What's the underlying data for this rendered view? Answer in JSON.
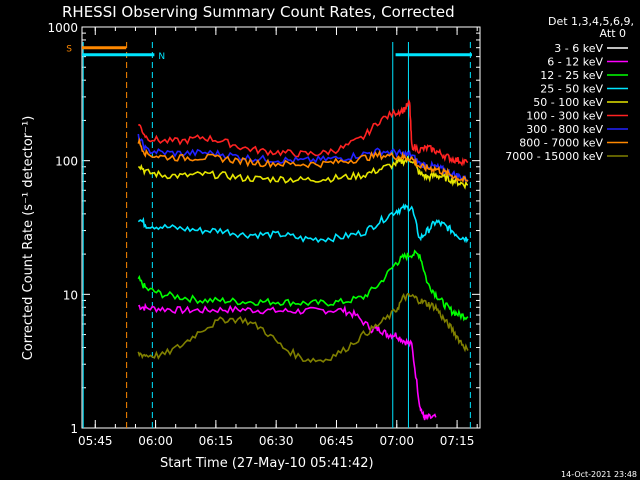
{
  "chart_data": {
    "type": "line",
    "title": "RHESSI Observing Summary Count Rates, Corrected",
    "xlabel": "Start Time (27-May-10 05:41:42)",
    "ylabel": "Corrected Count Rate (s⁻¹ detector⁻¹)",
    "footer": "14-Oct-2021 23:48",
    "legend_header": [
      "Det 1,3,4,5,6,9,",
      "Att 0"
    ],
    "legend_placement": "right",
    "x_axis": {
      "unit": "minutes after 05:41:42",
      "range": [
        0,
        99
      ],
      "ticks": [
        {
          "label": "05:45",
          "value": 3.3
        },
        {
          "label": "06:00",
          "value": 18.3
        },
        {
          "label": "06:15",
          "value": 33.3
        },
        {
          "label": "06:30",
          "value": 48.3
        },
        {
          "label": "06:45",
          "value": 63.3
        },
        {
          "label": "07:00",
          "value": 78.3
        },
        {
          "label": "07:15",
          "value": 93.3
        }
      ]
    },
    "y_axis": {
      "scale": "log",
      "range": [
        1,
        1000
      ],
      "ticks": [
        {
          "label": "1",
          "value": 1
        },
        {
          "label": "10",
          "value": 10
        },
        {
          "label": "100",
          "value": 100
        },
        {
          "label": "1000",
          "value": 1000
        }
      ]
    },
    "flags": [
      {
        "label": "S",
        "color": "#ff8800",
        "y": 700,
        "x_start": 0,
        "x_end": 11
      },
      {
        "label": "N",
        "color": "#00e5ff",
        "y": 620,
        "x_start": 0,
        "x_end": 18
      },
      {
        "label": "",
        "color": "#00e5ff",
        "y": 620,
        "x_start": 78,
        "x_end": 97
      }
    ],
    "vlines": [
      {
        "x": 0.3,
        "color": "#00e5ff",
        "style": "solid"
      },
      {
        "x": 11.1,
        "color": "#ff8800",
        "style": "dashed"
      },
      {
        "x": 17.5,
        "color": "#00e5ff",
        "style": "dashed"
      },
      {
        "x": 77.3,
        "color": "#00e5ff",
        "style": "solid"
      },
      {
        "x": 81.2,
        "color": "#00e5ff",
        "style": "solid"
      },
      {
        "x": 96.6,
        "color": "#00e5ff",
        "style": "dashed"
      }
    ],
    "series": [
      {
        "name": "3 - 6 keV",
        "color": "#000000",
        "x": [],
        "y": []
      },
      {
        "name": "6 - 12 keV",
        "color": "#ff00ff",
        "x": [
          14,
          16,
          20,
          25,
          30,
          35,
          40,
          45,
          50,
          55,
          60,
          65,
          68,
          72,
          74,
          76,
          78,
          80,
          82,
          84,
          85,
          86,
          88
        ],
        "y": [
          8.2,
          7.9,
          7.8,
          7.6,
          7.6,
          7.7,
          7.7,
          7.6,
          7.5,
          7.5,
          7.6,
          7.6,
          7.0,
          5.5,
          5.5,
          5.0,
          5.0,
          4.5,
          4.2,
          1.5,
          1.2,
          1.2,
          1.2
        ]
      },
      {
        "name": "12 - 25 keV",
        "color": "#00ff00",
        "x": [
          14,
          16,
          20,
          25,
          30,
          35,
          40,
          45,
          50,
          55,
          60,
          65,
          70,
          74,
          78,
          80,
          82,
          84,
          86,
          88,
          90,
          92,
          94,
          96
        ],
        "y": [
          13,
          11,
          10,
          9.5,
          9,
          9,
          8.8,
          8.8,
          8.8,
          8.6,
          8.6,
          8.8,
          9.5,
          12,
          17,
          19,
          20,
          20,
          12,
          10,
          8.5,
          7.5,
          7,
          6.8
        ]
      },
      {
        "name": "25 - 50 keV",
        "color": "#00e5ff",
        "x": [
          14,
          16,
          20,
          25,
          30,
          35,
          40,
          45,
          50,
          55,
          60,
          65,
          70,
          74,
          78,
          80,
          82,
          84,
          86,
          88,
          90,
          92,
          94,
          96
        ],
        "y": [
          37,
          33,
          32,
          31,
          30,
          30,
          28,
          28,
          28,
          26,
          26,
          27,
          29,
          35,
          42,
          44,
          45,
          26,
          30,
          35,
          33,
          30,
          27,
          26
        ]
      },
      {
        "name": "50 - 100 keV",
        "color": "#e6e600",
        "x": [
          14,
          16,
          20,
          25,
          30,
          35,
          40,
          45,
          50,
          55,
          60,
          65,
          70,
          74,
          78,
          80,
          82,
          84,
          86,
          88,
          90,
          92,
          94,
          96
        ],
        "y": [
          95,
          82,
          78,
          77,
          79,
          78,
          74,
          73,
          73,
          72,
          73,
          75,
          78,
          86,
          95,
          100,
          102,
          80,
          75,
          78,
          75,
          72,
          68,
          66
        ]
      },
      {
        "name": "100 - 300 keV",
        "color": "#ff2222",
        "x": [
          14,
          16,
          20,
          25,
          30,
          35,
          40,
          45,
          50,
          55,
          60,
          65,
          70,
          74,
          78,
          80,
          81.5,
          82,
          84,
          86,
          88,
          90,
          92,
          94,
          96
        ],
        "y": [
          190,
          150,
          140,
          140,
          150,
          140,
          125,
          118,
          115,
          112,
          114,
          125,
          150,
          200,
          230,
          240,
          270,
          130,
          120,
          125,
          118,
          110,
          103,
          100,
          97
        ]
      },
      {
        "name": "300 - 800 keV",
        "color": "#2222ff",
        "x": [
          14,
          16,
          20,
          25,
          30,
          35,
          40,
          45,
          50,
          55,
          60,
          65,
          70,
          74,
          78,
          80,
          82,
          84,
          86,
          88,
          90,
          92,
          94,
          96
        ],
        "y": [
          150,
          120,
          115,
          113,
          115,
          112,
          106,
          103,
          101,
          100,
          102,
          105,
          112,
          118,
          115,
          112,
          110,
          95,
          92,
          90,
          85,
          80,
          76,
          72
        ]
      },
      {
        "name": "800 - 7000 keV",
        "color": "#ff8800",
        "x": [
          14,
          16,
          20,
          25,
          30,
          35,
          40,
          45,
          50,
          55,
          60,
          65,
          70,
          74,
          78,
          80,
          82,
          84,
          86,
          88,
          90,
          92,
          94,
          96
        ],
        "y": [
          140,
          112,
          107,
          105,
          106,
          104,
          99,
          96,
          95,
          94,
          95,
          99,
          105,
          110,
          108,
          106,
          104,
          90,
          88,
          87,
          82,
          78,
          73,
          70
        ]
      },
      {
        "name": "7000 - 15000 keV",
        "color": "#808000",
        "x": [
          14,
          16,
          20,
          25,
          30,
          35,
          40,
          45,
          50,
          55,
          60,
          65,
          70,
          74,
          78,
          80,
          82,
          84,
          86,
          88,
          90,
          92,
          94,
          96
        ],
        "y": [
          3.6,
          3.5,
          3.5,
          4.2,
          5.5,
          6.5,
          6.5,
          5.5,
          4.0,
          3.3,
          3.2,
          3.8,
          5.0,
          6.0,
          7.5,
          9.5,
          9.7,
          9.0,
          8.5,
          8.0,
          6.5,
          5.5,
          4.5,
          3.8
        ]
      }
    ]
  }
}
